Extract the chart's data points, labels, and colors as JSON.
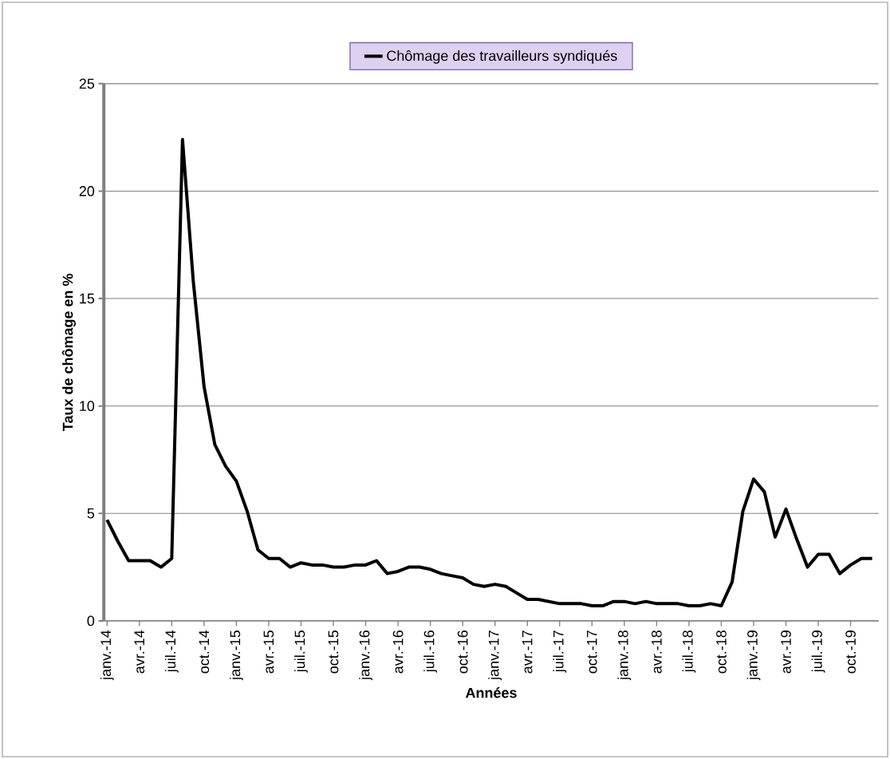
{
  "chart_data": {
    "type": "line",
    "xlabel": "Années",
    "ylabel": "Taux de chômage en %",
    "categories": [
      "janv.-14",
      null,
      null,
      "avr.-14",
      null,
      null,
      "juil.-14",
      null,
      null,
      "oct.-14",
      null,
      null,
      "janv.-15",
      null,
      null,
      "avr.-15",
      null,
      null,
      "juil.-15",
      null,
      null,
      "oct.-15",
      null,
      null,
      "janv.-16",
      null,
      null,
      "avr.-16",
      null,
      null,
      "juil.-16",
      null,
      null,
      "oct.-16",
      null,
      null,
      "janv.-17",
      null,
      null,
      "avr.-17",
      null,
      null,
      "juil.-17",
      null,
      null,
      "oct.-17",
      null,
      null,
      "janv.-18",
      null,
      null,
      "avr.-18",
      null,
      null,
      "juil.-18",
      null,
      null,
      "oct.-18",
      null,
      null,
      "janv.-19",
      null,
      null,
      "avr.-19",
      null,
      null,
      "juil.-19",
      null,
      null,
      "oct.-19",
      null,
      null
    ],
    "series": [
      {
        "name": "Chômage des travailleurs  syndiqués",
        "color": "#000000",
        "values": [
          4.7,
          3.7,
          2.8,
          2.8,
          2.8,
          2.5,
          2.9,
          22.4,
          15.8,
          10.9,
          8.2,
          7.2,
          6.5,
          5.1,
          3.3,
          2.9,
          2.9,
          2.5,
          2.7,
          2.6,
          2.6,
          2.5,
          2.5,
          2.6,
          2.6,
          2.8,
          2.2,
          2.3,
          2.5,
          2.5,
          2.4,
          2.2,
          2.1,
          2.0,
          1.7,
          1.6,
          1.7,
          1.6,
          1.3,
          1.0,
          1.0,
          0.9,
          0.8,
          0.8,
          0.8,
          0.7,
          0.7,
          0.9,
          0.9,
          0.8,
          0.9,
          0.8,
          0.8,
          0.8,
          0.7,
          0.7,
          0.8,
          0.7,
          1.8,
          5.1,
          6.6,
          6.0,
          3.9,
          5.2,
          3.8,
          2.5,
          3.1,
          3.1,
          2.2,
          2.6,
          2.9,
          2.9
        ]
      }
    ],
    "ylim": [
      0,
      25
    ],
    "yticks": [
      0,
      5,
      10,
      15,
      20,
      25
    ],
    "grid": "y",
    "legend": "top"
  }
}
